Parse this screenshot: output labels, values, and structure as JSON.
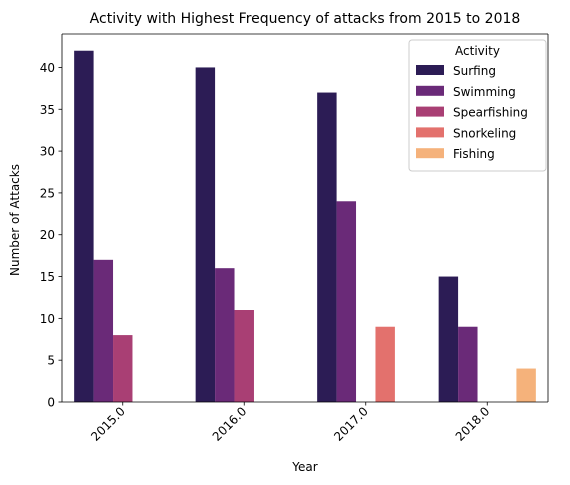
{
  "chart_data": {
    "type": "bar",
    "title": "Activity with Highest Frequency of attacks from 2015 to 2018",
    "xlabel": "Year",
    "ylabel": "Number of Attacks",
    "categories": [
      "2015.0",
      "2016.0",
      "2017.0",
      "2018.0"
    ],
    "ylim": [
      0,
      44
    ],
    "yticks": [
      0,
      5,
      10,
      15,
      20,
      25,
      30,
      35,
      40
    ],
    "grid": false,
    "legend": {
      "title": "Activity",
      "placement": "top-right"
    },
    "series": [
      {
        "name": "Surfing",
        "color": "#2c1c55",
        "values": [
          42,
          40,
          37,
          15
        ]
      },
      {
        "name": "Swimming",
        "color": "#6a2a78",
        "values": [
          17,
          16,
          24,
          9
        ]
      },
      {
        "name": "Spearfishing",
        "color": "#a93f74",
        "values": [
          8,
          11,
          null,
          null
        ]
      },
      {
        "name": "Snorkeling",
        "color": "#e3716d",
        "values": [
          null,
          null,
          9,
          null
        ]
      },
      {
        "name": "Fishing",
        "color": "#f5b27b",
        "values": [
          null,
          null,
          null,
          4
        ]
      }
    ]
  }
}
